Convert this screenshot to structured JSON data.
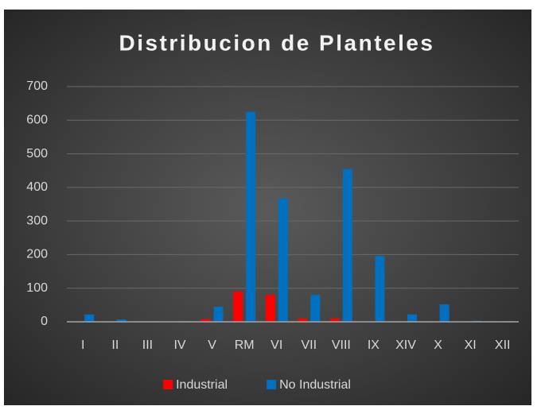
{
  "chart_data": {
    "type": "bar",
    "title": "Distribucion de Planteles",
    "categories": [
      "I",
      "II",
      "III",
      "IV",
      "V",
      "RM",
      "VI",
      "VII",
      "VIII",
      "IX",
      "XIV",
      "X",
      "XI",
      "XII"
    ],
    "series": [
      {
        "name": "Industrial",
        "color": "#ff0000",
        "values": [
          0,
          0,
          0,
          0,
          8,
          90,
          80,
          10,
          10,
          0,
          0,
          0,
          0,
          0
        ]
      },
      {
        "name": "No Industrial",
        "color": "#0070c0",
        "values": [
          22,
          7,
          2,
          2,
          45,
          625,
          367,
          80,
          455,
          196,
          22,
          52,
          3,
          2
        ]
      }
    ],
    "ylim": [
      0,
      700
    ],
    "yticks": [
      0,
      100,
      200,
      300,
      400,
      500,
      600,
      700
    ],
    "grid": true,
    "legend": "bottom"
  }
}
